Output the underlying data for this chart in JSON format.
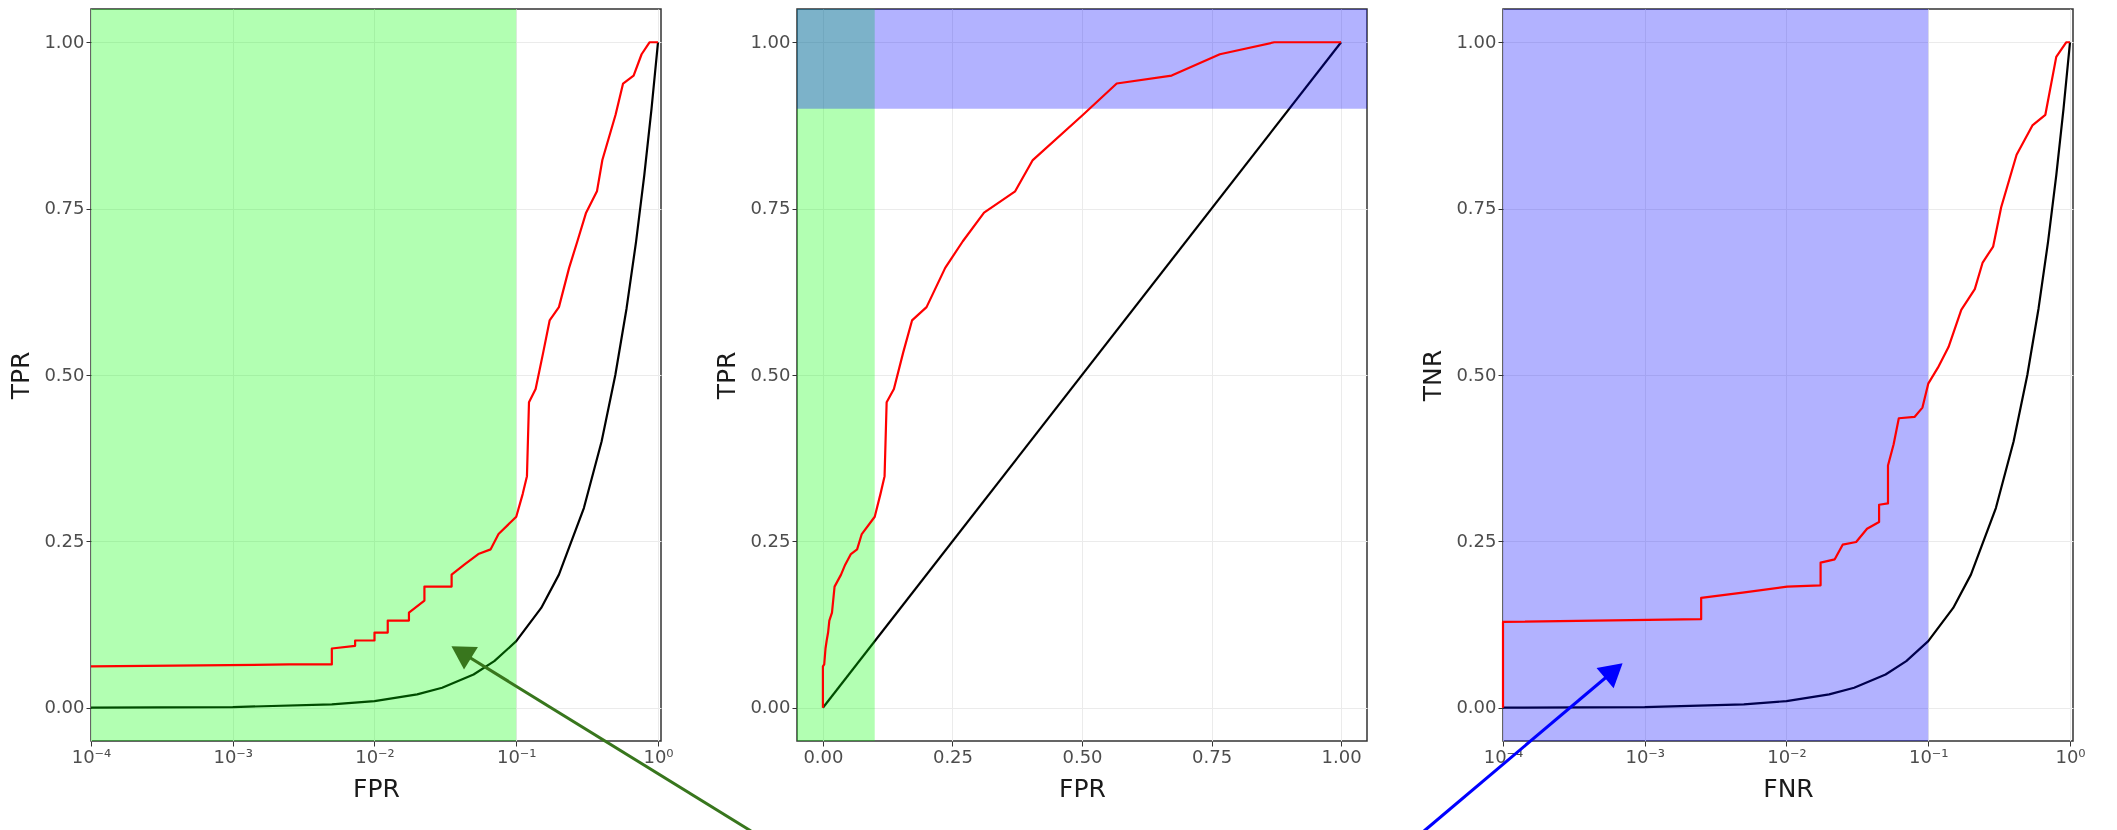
{
  "chart_data": [
    {
      "type": "line",
      "xlabel": "FPR",
      "ylabel": "TPR",
      "log": "x",
      "grid": true,
      "xlim": [
        0.0001,
        1.05
      ],
      "ylim": [
        -0.05,
        1.05
      ],
      "xticks": [
        {
          "value": 0.0001,
          "label": "10⁻⁴"
        },
        {
          "value": 0.001,
          "label": "10⁻³"
        },
        {
          "value": 0.01,
          "label": "10⁻²"
        },
        {
          "value": 0.1,
          "label": "10⁻¹"
        },
        {
          "value": 1,
          "label": "10⁰"
        }
      ],
      "yticks": [
        {
          "value": 0,
          "label": "0.00"
        },
        {
          "value": 0.25,
          "label": "0.25"
        },
        {
          "value": 0.5,
          "label": "0.50"
        },
        {
          "value": 0.75,
          "label": "0.75"
        },
        {
          "value": 1,
          "label": "1.00"
        }
      ],
      "series": [
        {
          "color": "#000000",
          "x": [
            0.0001,
            0.001,
            0.005,
            0.01,
            0.02,
            0.03,
            0.05,
            0.07,
            0.1,
            0.15,
            0.2,
            0.3,
            0.4,
            0.5,
            0.6,
            0.7,
            0.8,
            0.9,
            1.0
          ],
          "values": [
            0.0001,
            0.001,
            0.005,
            0.01,
            0.02,
            0.03,
            0.05,
            0.07,
            0.1,
            0.15,
            0.2,
            0.3,
            0.4,
            0.5,
            0.6,
            0.7,
            0.8,
            0.9,
            1.0
          ]
        },
        {
          "color": "#ff0000",
          "x": [
            0.0001,
            0.0025,
            0.005,
            0.005,
            0.0073,
            0.0073,
            0.01,
            0.01,
            0.0124,
            0.0124,
            0.0175,
            0.0175,
            0.0225,
            0.0225,
            0.035,
            0.035,
            0.043,
            0.054,
            0.066,
            0.075,
            0.1,
            0.111,
            0.119,
            0.123,
            0.137,
            0.155,
            0.172,
            0.2,
            0.236,
            0.27,
            0.311,
            0.371,
            0.405,
            0.502,
            0.567,
            0.673,
            0.766,
            0.871,
            1.0
          ],
          "values": [
            0.062,
            0.065,
            0.065,
            0.089,
            0.093,
            0.101,
            0.101,
            0.113,
            0.113,
            0.131,
            0.131,
            0.143,
            0.161,
            0.182,
            0.182,
            0.2,
            0.215,
            0.231,
            0.238,
            0.261,
            0.287,
            0.321,
            0.348,
            0.459,
            0.479,
            0.534,
            0.582,
            0.602,
            0.661,
            0.701,
            0.744,
            0.776,
            0.823,
            0.891,
            0.938,
            0.95,
            0.982,
            1.0,
            1.0
          ]
        }
      ],
      "bands": [
        {
          "axis": "x",
          "from": 0.0001,
          "to": 0.1,
          "color": "#00ff00"
        }
      ]
    },
    {
      "type": "line",
      "xlabel": "FPR",
      "ylabel": "TPR",
      "grid": true,
      "xlim": [
        -0.05,
        1.05
      ],
      "ylim": [
        -0.05,
        1.05
      ],
      "xticks": [
        {
          "value": 0,
          "label": "0.00"
        },
        {
          "value": 0.25,
          "label": "0.25"
        },
        {
          "value": 0.5,
          "label": "0.50"
        },
        {
          "value": 0.75,
          "label": "0.75"
        },
        {
          "value": 1,
          "label": "1.00"
        }
      ],
      "yticks": [
        {
          "value": 0,
          "label": "0.00"
        },
        {
          "value": 0.25,
          "label": "0.25"
        },
        {
          "value": 0.5,
          "label": "0.50"
        },
        {
          "value": 0.75,
          "label": "0.75"
        },
        {
          "value": 1,
          "label": "1.00"
        }
      ],
      "series": [
        {
          "color": "#000000",
          "x": [
            0,
            1
          ],
          "values": [
            0,
            1
          ]
        },
        {
          "color": "#ff0000",
          "x": [
            0,
            0,
            0.0025,
            0.005,
            0.0073,
            0.01,
            0.0124,
            0.0175,
            0.0225,
            0.035,
            0.043,
            0.054,
            0.066,
            0.075,
            0.1,
            0.111,
            0.119,
            0.123,
            0.137,
            0.155,
            0.172,
            0.2,
            0.236,
            0.27,
            0.311,
            0.371,
            0.405,
            0.502,
            0.567,
            0.673,
            0.766,
            0.871,
            1.0
          ],
          "values": [
            0,
            0.062,
            0.065,
            0.089,
            0.101,
            0.113,
            0.131,
            0.143,
            0.182,
            0.2,
            0.215,
            0.231,
            0.238,
            0.261,
            0.287,
            0.321,
            0.348,
            0.459,
            0.479,
            0.534,
            0.582,
            0.602,
            0.661,
            0.701,
            0.744,
            0.776,
            0.823,
            0.891,
            0.938,
            0.95,
            0.982,
            1.0,
            1.0
          ]
        }
      ],
      "bands": [
        {
          "axis": "x",
          "from": -0.05,
          "to": 0.1,
          "color": "#00ff00"
        },
        {
          "axis": "y",
          "from": 0.9,
          "to": 1.05,
          "color": "#0000ff"
        }
      ]
    },
    {
      "type": "line",
      "xlabel": "FNR",
      "ylabel": "TNR",
      "log": "x",
      "grid": true,
      "xlim": [
        0.0001,
        1.05
      ],
      "ylim": [
        -0.05,
        1.05
      ],
      "xticks": [
        {
          "value": 0.0001,
          "label": "10⁻⁴"
        },
        {
          "value": 0.001,
          "label": "10⁻³"
        },
        {
          "value": 0.01,
          "label": "10⁻²"
        },
        {
          "value": 0.1,
          "label": "10⁻¹"
        },
        {
          "value": 1,
          "label": "10⁰"
        }
      ],
      "yticks": [
        {
          "value": 0,
          "label": "0.00"
        },
        {
          "value": 0.25,
          "label": "0.25"
        },
        {
          "value": 0.5,
          "label": "0.50"
        },
        {
          "value": 0.75,
          "label": "0.75"
        },
        {
          "value": 1,
          "label": "1.00"
        }
      ],
      "series": [
        {
          "color": "#000000",
          "x": [
            0.0001,
            0.001,
            0.005,
            0.01,
            0.02,
            0.03,
            0.05,
            0.07,
            0.1,
            0.15,
            0.2,
            0.3,
            0.4,
            0.5,
            0.6,
            0.7,
            0.8,
            0.9,
            1.0
          ],
          "values": [
            0.0001,
            0.001,
            0.005,
            0.01,
            0.02,
            0.03,
            0.05,
            0.07,
            0.1,
            0.15,
            0.2,
            0.3,
            0.4,
            0.5,
            0.6,
            0.7,
            0.8,
            0.9,
            1.0
          ]
        },
        {
          "color": "#ff0000",
          "x": [
            0.0001,
            0.0001,
            0.0025,
            0.0025,
            0.0049,
            0.0101,
            0.0174,
            0.0174,
            0.0219,
            0.0249,
            0.031,
            0.037,
            0.045,
            0.045,
            0.052,
            0.052,
            0.057,
            0.062,
            0.08,
            0.091,
            0.1,
            0.117,
            0.139,
            0.171,
            0.213,
            0.242,
            0.287,
            0.327,
            0.42,
            0.543,
            0.67,
            0.8,
            0.94,
            1.0
          ],
          "values": [
            0,
            0.129,
            0.133,
            0.165,
            0.173,
            0.182,
            0.184,
            0.218,
            0.223,
            0.245,
            0.249,
            0.269,
            0.279,
            0.305,
            0.307,
            0.364,
            0.396,
            0.435,
            0.437,
            0.451,
            0.487,
            0.511,
            0.542,
            0.598,
            0.629,
            0.669,
            0.693,
            0.752,
            0.831,
            0.875,
            0.891,
            0.978,
            1.0,
            1.0
          ]
        }
      ],
      "bands": [
        {
          "axis": "x",
          "from": 0.0001,
          "to": 0.1,
          "color": "#0000ff"
        }
      ]
    }
  ]
}
